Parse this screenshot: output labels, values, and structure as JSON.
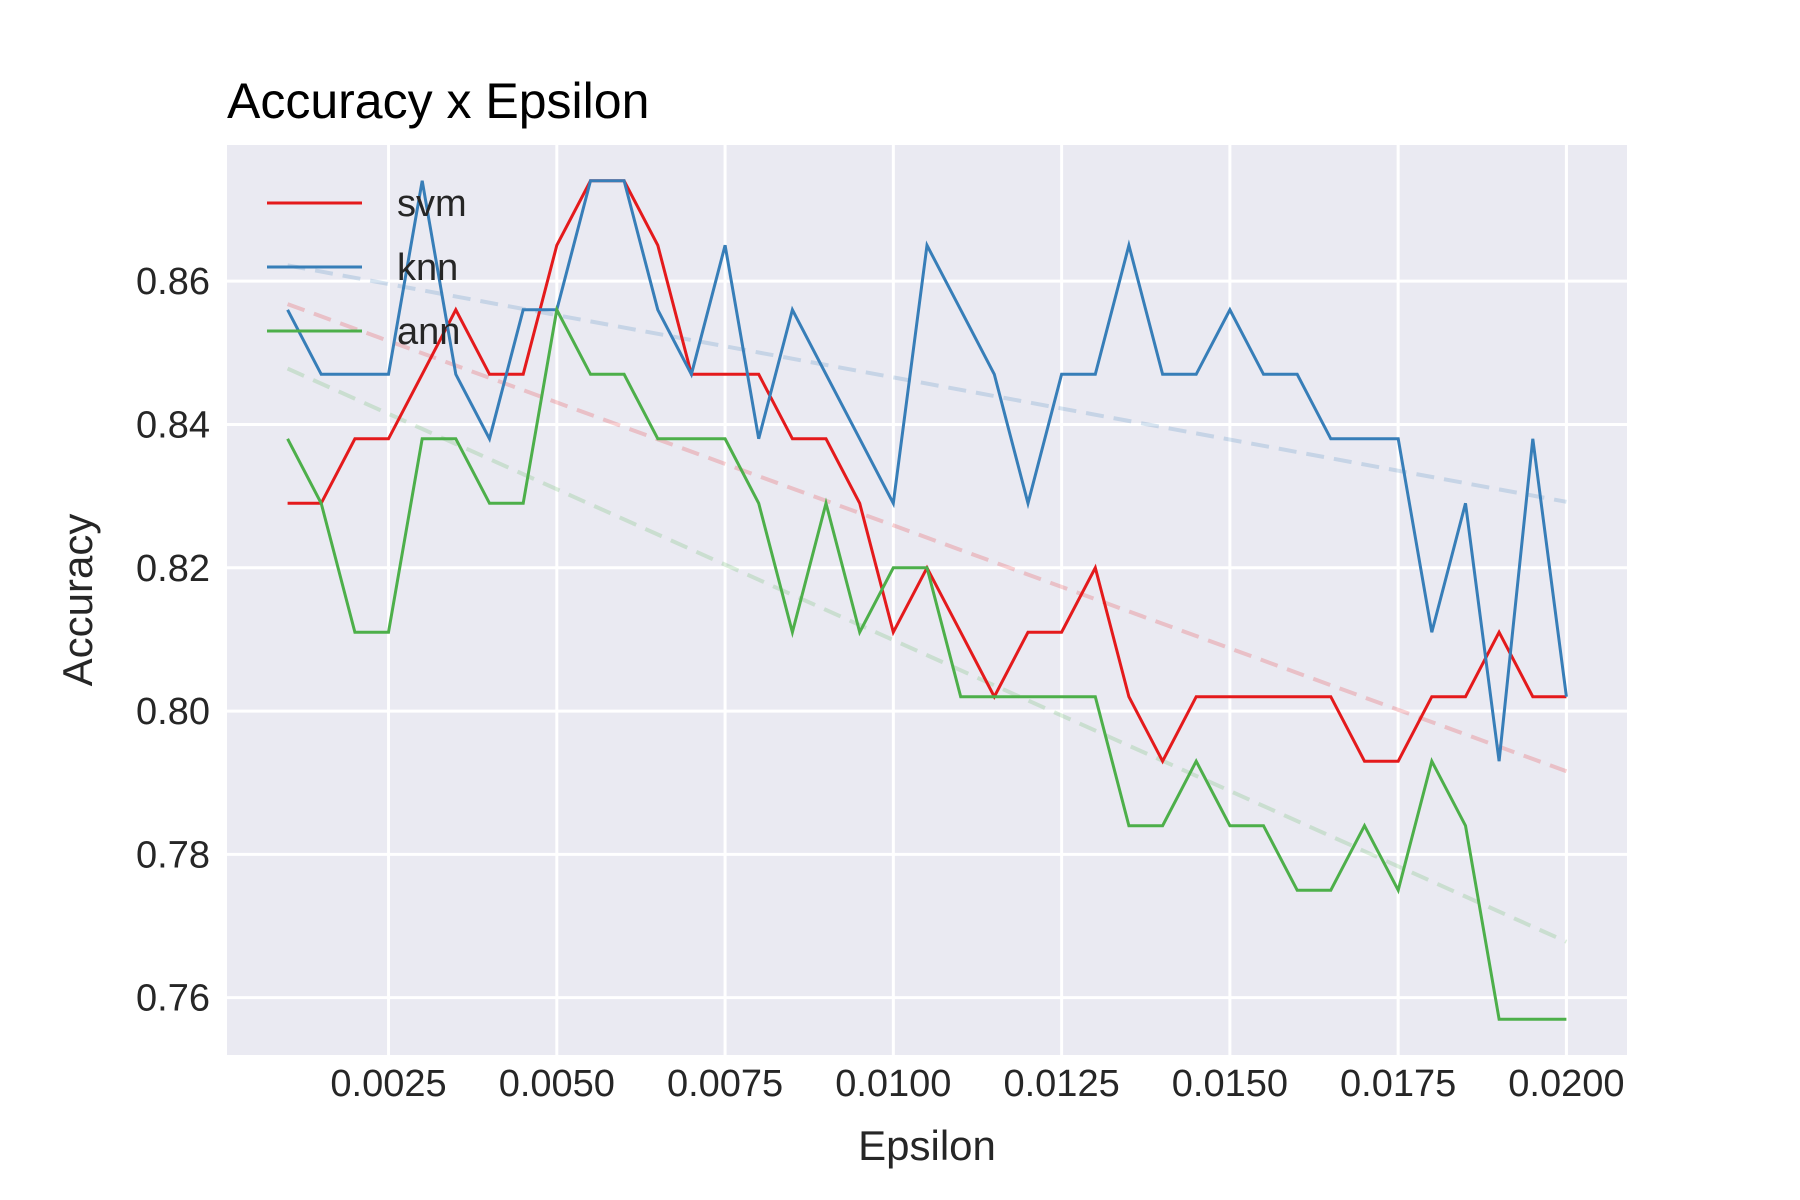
{
  "chart_data": {
    "type": "line",
    "title": "Accuracy x Epsilon",
    "xlabel": "Epsilon",
    "ylabel": "Accuracy",
    "xlim": [
      0.0001,
      0.0209
    ],
    "ylim": [
      0.752,
      0.879
    ],
    "xticks": [
      0.0025,
      0.005,
      0.0075,
      0.01,
      0.0125,
      0.015,
      0.0175,
      0.02
    ],
    "xtick_labels": [
      "0.0025",
      "0.0050",
      "0.0075",
      "0.0100",
      "0.0125",
      "0.0150",
      "0.0175",
      "0.0200"
    ],
    "yticks": [
      0.76,
      0.78,
      0.8,
      0.82,
      0.84,
      0.86
    ],
    "ytick_labels": [
      "0.76",
      "0.78",
      "0.80",
      "0.82",
      "0.84",
      "0.86"
    ],
    "grid": true,
    "legend": "upper-left",
    "x": [
      0.001,
      0.0015,
      0.002,
      0.0025,
      0.003,
      0.0035,
      0.004,
      0.0045,
      0.005,
      0.0055,
      0.006,
      0.0065,
      0.007,
      0.0075,
      0.008,
      0.0085,
      0.009,
      0.0095,
      0.01,
      0.0105,
      0.011,
      0.0115,
      0.012,
      0.0125,
      0.013,
      0.0135,
      0.014,
      0.0145,
      0.015,
      0.0155,
      0.016,
      0.0165,
      0.017,
      0.0175,
      0.018,
      0.0185,
      0.019,
      0.0195,
      0.02
    ],
    "series": [
      {
        "name": "svm",
        "color": "#e41a1c",
        "values": [
          0.829,
          0.829,
          0.838,
          0.838,
          0.847,
          0.856,
          0.847,
          0.847,
          0.865,
          0.874,
          0.874,
          0.865,
          0.847,
          0.847,
          0.847,
          0.838,
          0.838,
          0.829,
          0.811,
          0.82,
          0.811,
          0.802,
          0.811,
          0.811,
          0.82,
          0.802,
          0.793,
          0.802,
          0.802,
          0.802,
          0.802,
          0.802,
          0.793,
          0.793,
          0.802,
          0.802,
          0.811,
          0.802,
          0.802
        ],
        "trend": [
          0.8568,
          0.7916
        ]
      },
      {
        "name": "knn",
        "color": "#377eb8",
        "values": [
          0.856,
          0.847,
          0.847,
          0.847,
          0.874,
          0.847,
          0.838,
          0.856,
          0.856,
          0.874,
          0.874,
          0.856,
          0.847,
          0.865,
          0.838,
          0.856,
          0.847,
          0.838,
          0.829,
          0.865,
          0.856,
          0.847,
          0.829,
          0.847,
          0.847,
          0.865,
          0.847,
          0.847,
          0.856,
          0.847,
          0.847,
          0.838,
          0.838,
          0.838,
          0.811,
          0.829,
          0.793,
          0.838,
          0.802
        ],
        "trend": [
          0.8622,
          0.8292
        ]
      },
      {
        "name": "ann",
        "color": "#4daf4a",
        "values": [
          0.838,
          0.829,
          0.811,
          0.811,
          0.838,
          0.838,
          0.829,
          0.829,
          0.856,
          0.847,
          0.847,
          0.838,
          0.838,
          0.838,
          0.829,
          0.811,
          0.829,
          0.811,
          0.82,
          0.82,
          0.802,
          0.802,
          0.802,
          0.802,
          0.802,
          0.784,
          0.784,
          0.793,
          0.784,
          0.784,
          0.775,
          0.775,
          0.784,
          0.775,
          0.793,
          0.784,
          0.757,
          0.757,
          0.757
        ],
        "trend": [
          0.8478,
          0.7678
        ]
      }
    ]
  }
}
